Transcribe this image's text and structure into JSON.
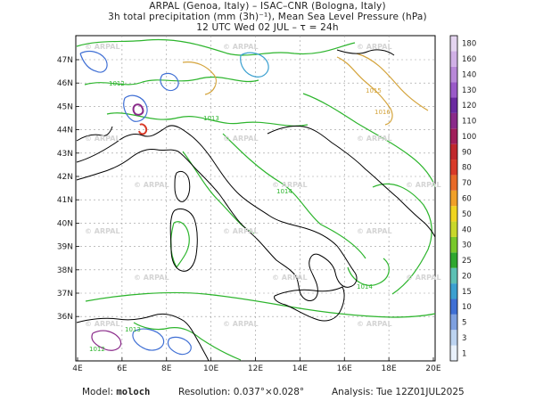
{
  "header": {
    "line1": "ARPAL (Genoa, Italy)  –  ISAC–CNR (Bologna, Italy)",
    "line2": "3h total precipitation (mm (3h)⁻¹), Mean Sea Level Pressure (hPa)",
    "line3": "12 UTC Wed 02 JUL   –   τ = 24h"
  },
  "map": {
    "lat_labels": [
      "47N",
      "46N",
      "45N",
      "44N",
      "43N",
      "42N",
      "41N",
      "40N",
      "39N",
      "38N",
      "37N",
      "36N"
    ],
    "lon_labels": [
      "4E",
      "6E",
      "8E",
      "10E",
      "12E",
      "14E",
      "16E",
      "18E",
      "20E"
    ],
    "watermark": "ARPAL",
    "isobar_labels": [
      "1012",
      "1013",
      "1014",
      "1015",
      "1016"
    ],
    "isobar_color_low": "#2db52d",
    "isobar_color_high": "#d4a43c",
    "coast_color": "#000000"
  },
  "colorbar": {
    "ticks": [
      "1",
      "3",
      "5",
      "10",
      "15",
      "20",
      "25",
      "30",
      "40",
      "50",
      "60",
      "70",
      "80",
      "90",
      "100",
      "110",
      "120",
      "130",
      "140",
      "160",
      "180"
    ],
    "colors": [
      "#e9f1fb",
      "#bcd3f0",
      "#7ea0e0",
      "#3f6fd4",
      "#3ba0d0",
      "#5cc0b4",
      "#2fa82f",
      "#78c82a",
      "#c8d82a",
      "#f0d420",
      "#f0a028",
      "#e86a28",
      "#d83a28",
      "#c0282c",
      "#a01e5a",
      "#8a2a8a",
      "#6a2aa0",
      "#9a5ac8",
      "#b888d8",
      "#d0b0e6",
      "#e4d4f0"
    ]
  },
  "footer": {
    "model_label": "Model:",
    "model_value": "moloch",
    "resolution_label": "Resolution:",
    "resolution_value": "0.037°×0.028°",
    "analysis_label": "Analysis:",
    "analysis_value": "Tue 12Z01JUL2025"
  }
}
